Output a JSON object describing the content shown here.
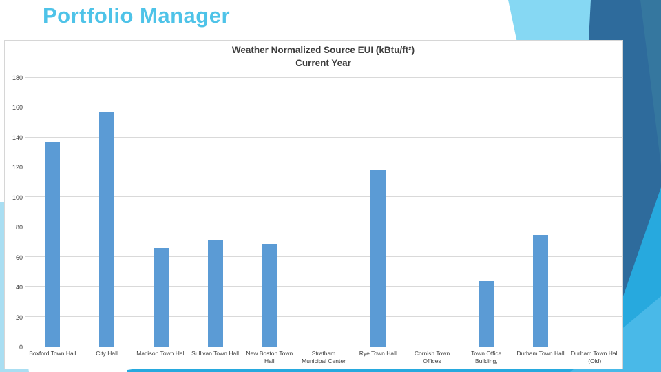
{
  "slide": {
    "title": "Portfolio Manager",
    "colors": {
      "title": "#4ec3e8",
      "bar": "#5b9bd5",
      "grid": "#d9d9d9",
      "axis": "#b9b9b9",
      "text": "#3d3d3d",
      "panel_border": "#d6d6d6",
      "accent_sky": "#86d8f3",
      "accent_dark": "#2e6b9c",
      "accent_mid": "#35779f",
      "accent_cyan": "#27a9de",
      "accent_cyan_light": "#49b9e8",
      "accent_pale": "#a9def2"
    }
  },
  "chart_data": {
    "type": "bar",
    "title": "Weather Normalized Source EUI (kBtu/ft²)",
    "subtitle": "Current Year",
    "categories": [
      "Boxford Town Hall",
      "City Hall",
      "Madison Town Hall",
      "Sullivan Town Hall",
      "New Boston Town Hall",
      "Stratham Municipal Center",
      "Rye Town Hall",
      "Cornish Town Offices",
      "Town Office Building,",
      "Durham Town Hall",
      "Durham Town Hall (Old)"
    ],
    "values": [
      137,
      157,
      66,
      71,
      69,
      0,
      118,
      0,
      44,
      75,
      0
    ],
    "xlabel": "",
    "ylabel": "",
    "ylim": [
      0,
      180
    ],
    "yticks": [
      0,
      20,
      40,
      60,
      80,
      100,
      120,
      140,
      160,
      180
    ],
    "grid": true,
    "legend_position": "none",
    "bar_color": "#5b9bd5"
  }
}
